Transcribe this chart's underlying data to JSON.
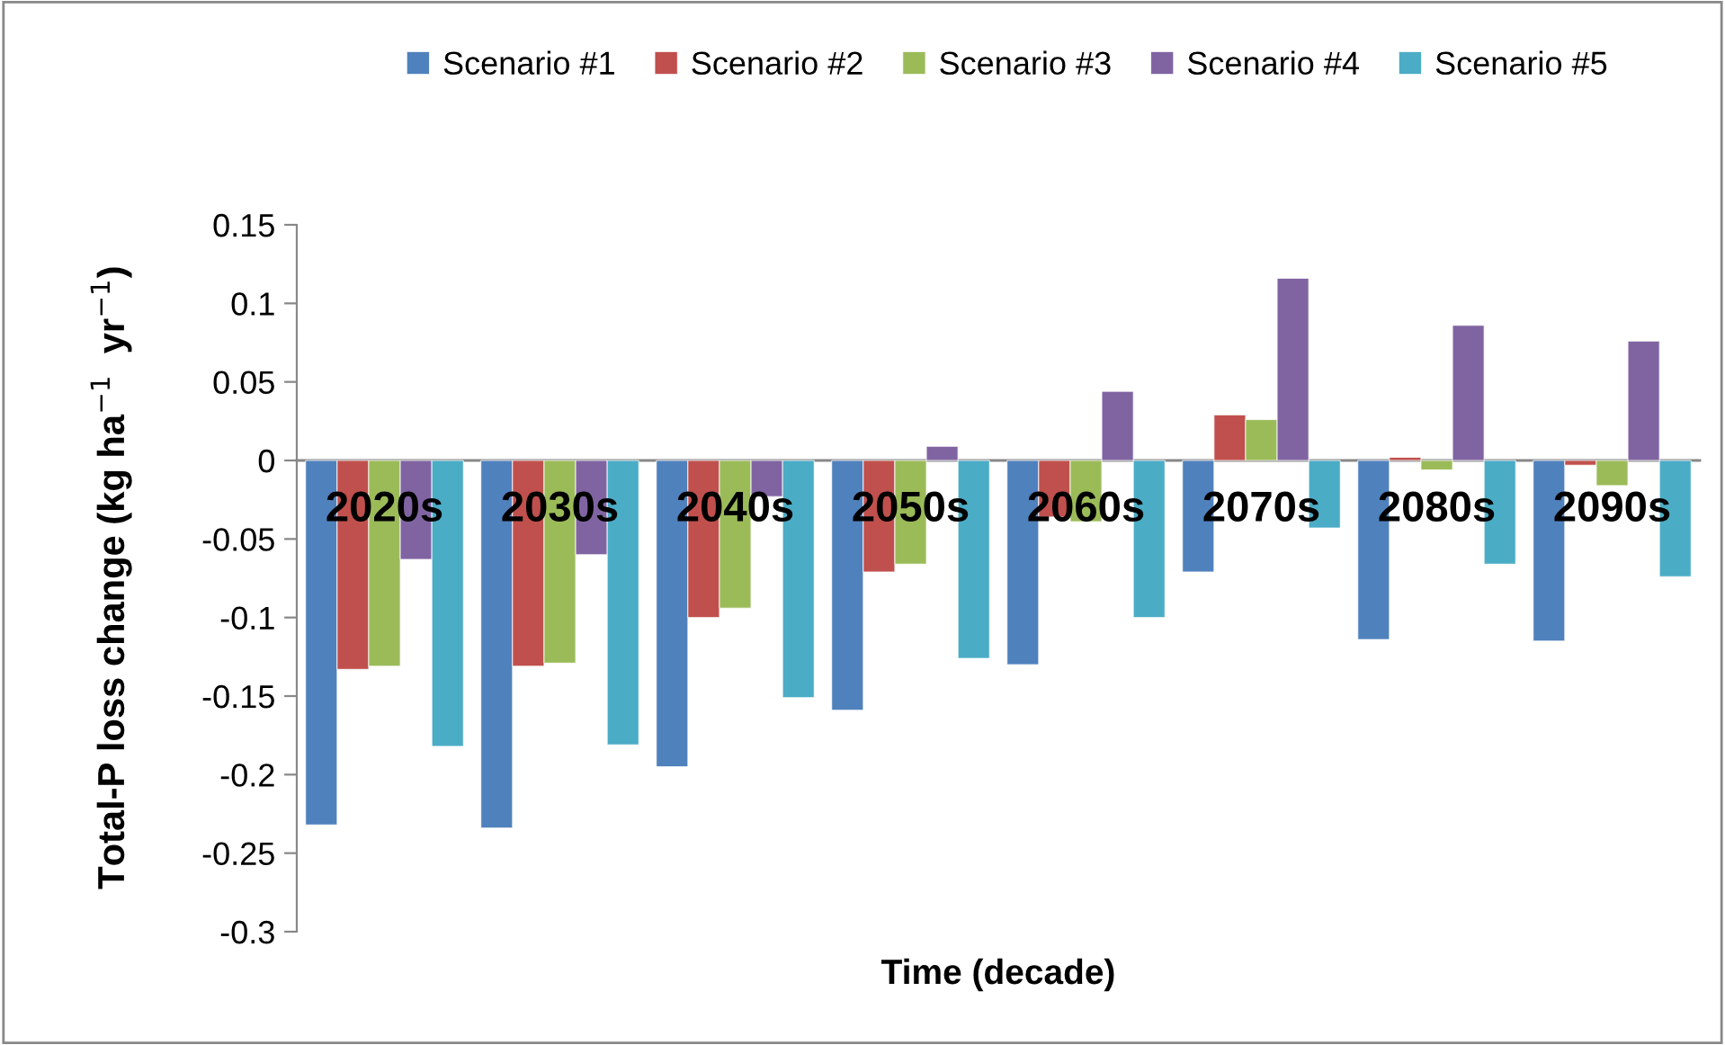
{
  "chart_data": {
    "type": "bar",
    "xlabel": "Time (decade)",
    "ylabel": "Total-P loss change (kg ha$^{−1}$  yr$^{−1}$)",
    "categories": [
      "2020s",
      "2030s",
      "2040s",
      "2050s",
      "2060s",
      "2070s",
      "2080s",
      "2090s"
    ],
    "series": [
      {
        "name": "Scenario #1",
        "color": "#4f81bd",
        "values": [
          -0.232,
          -0.234,
          -0.195,
          -0.159,
          -0.13,
          -0.071,
          -0.114,
          -0.115
        ]
      },
      {
        "name": "Scenario #2",
        "color": "#c0504d",
        "values": [
          -0.133,
          -0.131,
          -0.1,
          -0.071,
          -0.036,
          0.029,
          0.002,
          -0.003
        ]
      },
      {
        "name": "Scenario #3",
        "color": "#9bbb59",
        "values": [
          -0.131,
          -0.129,
          -0.094,
          -0.066,
          -0.039,
          0.026,
          -0.006,
          -0.016
        ]
      },
      {
        "name": "Scenario #4",
        "color": "#8064a2",
        "values": [
          -0.063,
          -0.06,
          -0.023,
          0.009,
          0.044,
          0.116,
          0.086,
          0.076
        ]
      },
      {
        "name": "Scenario #5",
        "color": "#4bacc6",
        "values": [
          -0.182,
          -0.181,
          -0.151,
          -0.126,
          -0.1,
          -0.043,
          -0.066,
          -0.074
        ]
      }
    ],
    "ylim": [
      -0.3,
      0.15
    ],
    "yticks": [
      -0.3,
      -0.25,
      -0.2,
      -0.15,
      -0.1,
      -0.05,
      0,
      0.05,
      0.1,
      0.15
    ],
    "legend": "top",
    "grid": false
  }
}
